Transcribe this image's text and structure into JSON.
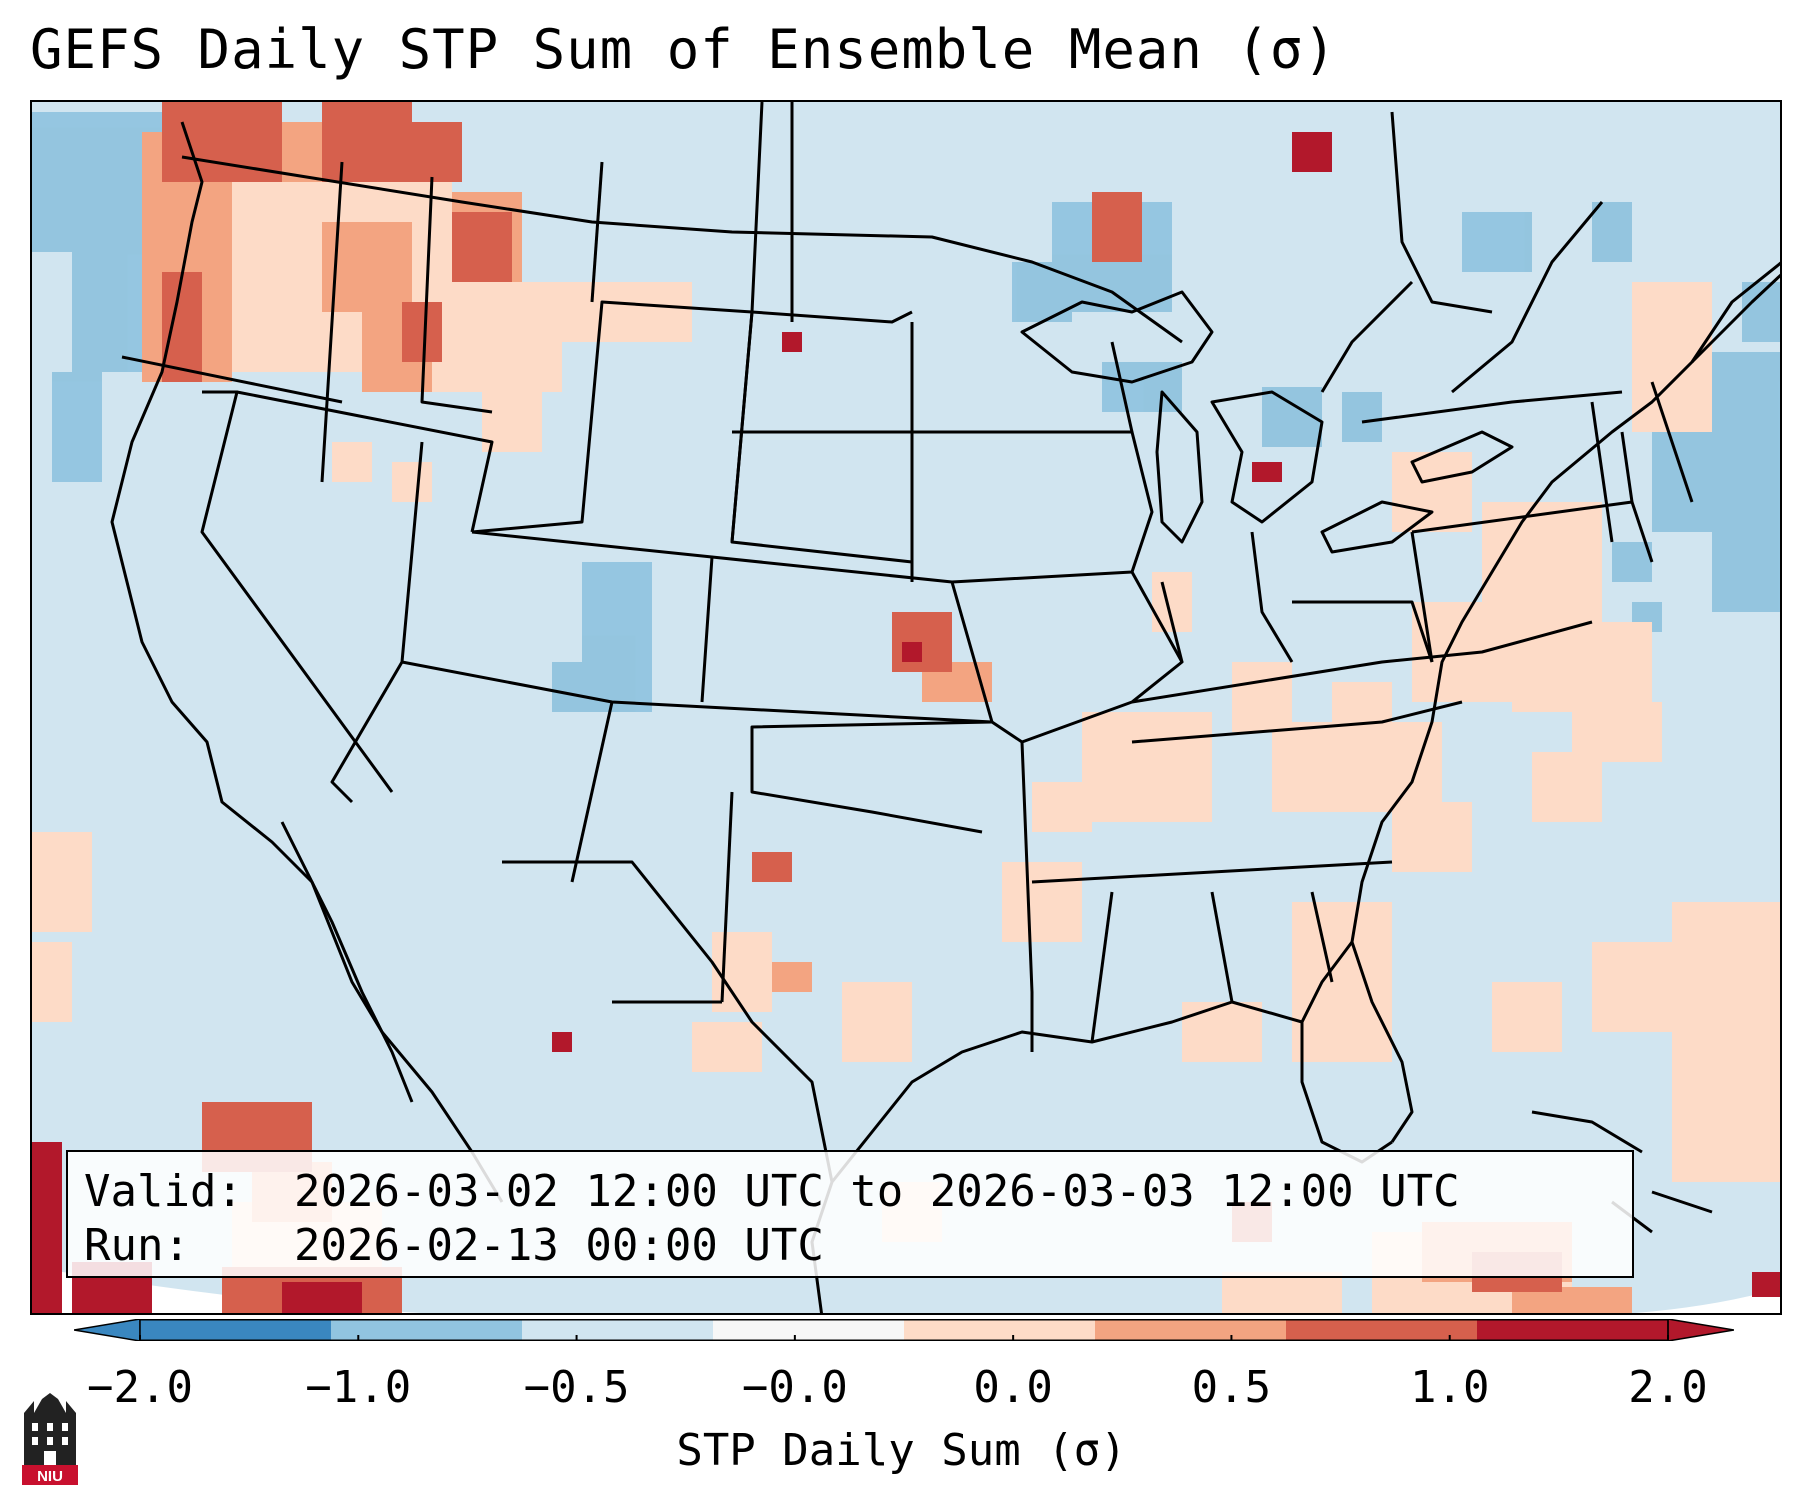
{
  "title": "GEFS Daily STP Sum of Ensemble Mean (σ)",
  "info": {
    "valid_label": "Valid:",
    "valid_value": "2026-03-02 12:00 UTC to 2026-03-03 12:00 UTC",
    "run_label": "Run:",
    "run_value": "2026-02-13 00:00 UTC"
  },
  "colorbar": {
    "label": "STP Daily Sum (σ)",
    "ticks": [
      "−2.0",
      "−1.0",
      "−0.5",
      "−0.0",
      "0.0",
      "0.5",
      "1.0",
      "2.0"
    ],
    "colors": [
      "#3a87c0",
      "#91c4df",
      "#d1e5f0",
      "#f7f7f7",
      "#fddbc7",
      "#f3a481",
      "#d6604d",
      "#b2182b"
    ]
  },
  "logo": {
    "text": "NIU"
  }
}
